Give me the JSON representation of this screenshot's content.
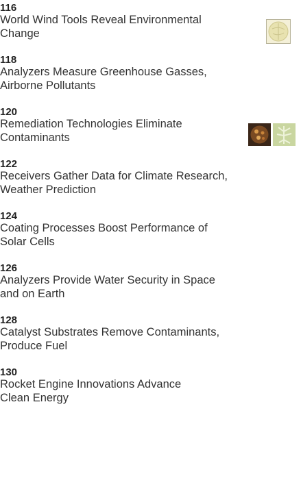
{
  "articles": [
    {
      "page": "116",
      "title_lines": [
        "World Wind Tools Reveal Environmental",
        "Change"
      ]
    },
    {
      "page": "118",
      "title_lines": [
        "Analyzers Measure Greenhouse Gasses,",
        "Airborne Pollutants"
      ]
    },
    {
      "page": "120",
      "title_lines": [
        "Remediation Technologies Eliminate",
        "Contaminants"
      ]
    },
    {
      "page": "122",
      "title_lines": [
        "Receivers Gather Data for Climate Research,",
        "Weather Prediction"
      ]
    },
    {
      "page": "124",
      "title_lines": [
        "Coating Processes Boost Performance of",
        "Solar Cells"
      ]
    },
    {
      "page": "126",
      "title_lines": [
        "Analyzers Provide Water Security in Space",
        "and on Earth"
      ]
    },
    {
      "page": "128",
      "title_lines": [
        "Catalyst Substrates Remove Contaminants,",
        "Produce Fuel"
      ]
    },
    {
      "page": "130",
      "title_lines": [
        "Rocket Engine Innovations Advance",
        "Clean Energy"
      ]
    }
  ]
}
